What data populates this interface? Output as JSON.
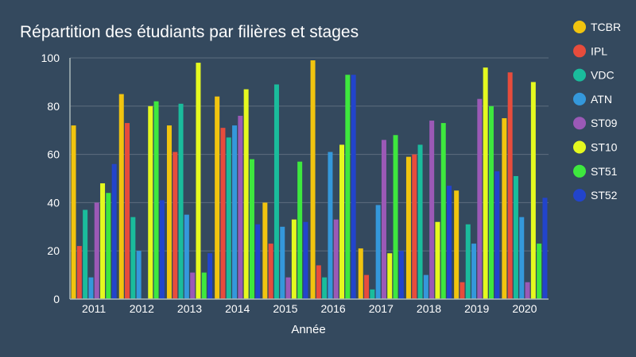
{
  "chart_data": {
    "type": "bar",
    "title": "Répartition des étudiants par filières et stages",
    "xlabel": "Année",
    "ylabel": "",
    "ylim": [
      0,
      100
    ],
    "yticks": [
      0,
      20,
      40,
      60,
      80,
      100
    ],
    "grid": true,
    "legend_position": "right",
    "categories": [
      "2011",
      "2012",
      "2013",
      "2014",
      "2015",
      "2016",
      "2017",
      "2018",
      "2019",
      "2020"
    ],
    "series": [
      {
        "name": "TCBR",
        "color": "#f1c40f",
        "values": [
          72,
          85,
          72,
          84,
          40,
          99,
          21,
          59,
          45,
          75
        ]
      },
      {
        "name": "IPL",
        "color": "#e74c3c",
        "values": [
          22,
          73,
          61,
          71,
          23,
          14,
          10,
          60,
          7,
          94
        ]
      },
      {
        "name": "VDC",
        "color": "#1abc9c",
        "values": [
          37,
          34,
          81,
          67,
          89,
          9,
          4,
          64,
          31,
          51
        ]
      },
      {
        "name": "ATN",
        "color": "#3498db",
        "values": [
          9,
          20,
          35,
          72,
          30,
          61,
          39,
          10,
          23,
          34
        ]
      },
      {
        "name": "ST09",
        "color": "#9b59b6",
        "values": [
          40,
          0,
          11,
          76,
          9,
          33,
          66,
          74,
          83,
          7
        ]
      },
      {
        "name": "ST10",
        "color": "#e5f91f",
        "values": [
          48,
          80,
          98,
          87,
          33,
          64,
          19,
          32,
          96,
          90
        ]
      },
      {
        "name": "ST51",
        "color": "#3ee83e",
        "values": [
          44,
          82,
          11,
          58,
          57,
          93,
          68,
          73,
          80,
          23
        ]
      },
      {
        "name": "ST52",
        "color": "#2244cc",
        "values": [
          56,
          41,
          19,
          31,
          32,
          93,
          20,
          47,
          53,
          42
        ]
      }
    ]
  }
}
